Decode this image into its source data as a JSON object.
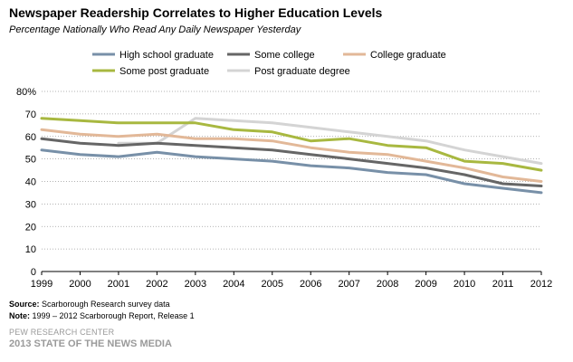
{
  "header": {
    "title": "Newspaper Readership Correlates to Higher Education Levels",
    "subtitle": "Percentage Nationally Who Read Any Daily Newspaper Yesterday"
  },
  "footer": {
    "source_label": "Source:",
    "source_text": " Scarborough Research survey data",
    "note_label": "Note:",
    "note_text": " 1999 – 2012 Scarborough Report, Release 1",
    "org": "PEW RESEARCH CENTER",
    "report": "2013 STATE OF THE NEWS MEDIA"
  },
  "chart_data": {
    "type": "line",
    "title": "Newspaper Readership Correlates to Higher Education Levels",
    "subtitle": "Percentage Nationally Who Read Any Daily Newspaper Yesterday",
    "xlabel": "",
    "ylabel": "",
    "x": [
      "1999",
      "2000",
      "2001",
      "2002",
      "2003",
      "2004",
      "2005",
      "2006",
      "2007",
      "2008",
      "2009",
      "2010",
      "2011",
      "2012"
    ],
    "ylim": [
      0,
      80
    ],
    "yticks": [
      0,
      10,
      20,
      30,
      40,
      50,
      60,
      70,
      80
    ],
    "ytick_labels": [
      "0",
      "10",
      "20",
      "30",
      "40",
      "50",
      "60",
      "70",
      "80%"
    ],
    "grid": "horizontal dotted",
    "legend_position": "top",
    "series": [
      {
        "name": "High school graduate",
        "color": "#7890a8",
        "values": [
          54,
          52,
          51,
          53,
          51,
          50,
          49,
          47,
          46,
          44,
          43,
          39,
          37,
          35
        ]
      },
      {
        "name": "Some college",
        "color": "#666666",
        "values": [
          59,
          57,
          56,
          57,
          56,
          55,
          54,
          52,
          50,
          48,
          46,
          43,
          39,
          38
        ]
      },
      {
        "name": "College graduate",
        "color": "#e2b898",
        "values": [
          63,
          61,
          60,
          61,
          59,
          59,
          58,
          55,
          53,
          52,
          49,
          46,
          42,
          40
        ]
      },
      {
        "name": "Some post graduate",
        "color": "#a8b840",
        "values": [
          68,
          67,
          66,
          66,
          66,
          63,
          62,
          58,
          59,
          56,
          55,
          49,
          48,
          45
        ]
      },
      {
        "name": "Post graduate degree",
        "color": "#d4d4d4",
        "values": [
          null,
          null,
          57,
          57,
          68,
          67,
          66,
          64,
          62,
          60,
          58,
          54,
          51,
          48
        ]
      }
    ]
  }
}
